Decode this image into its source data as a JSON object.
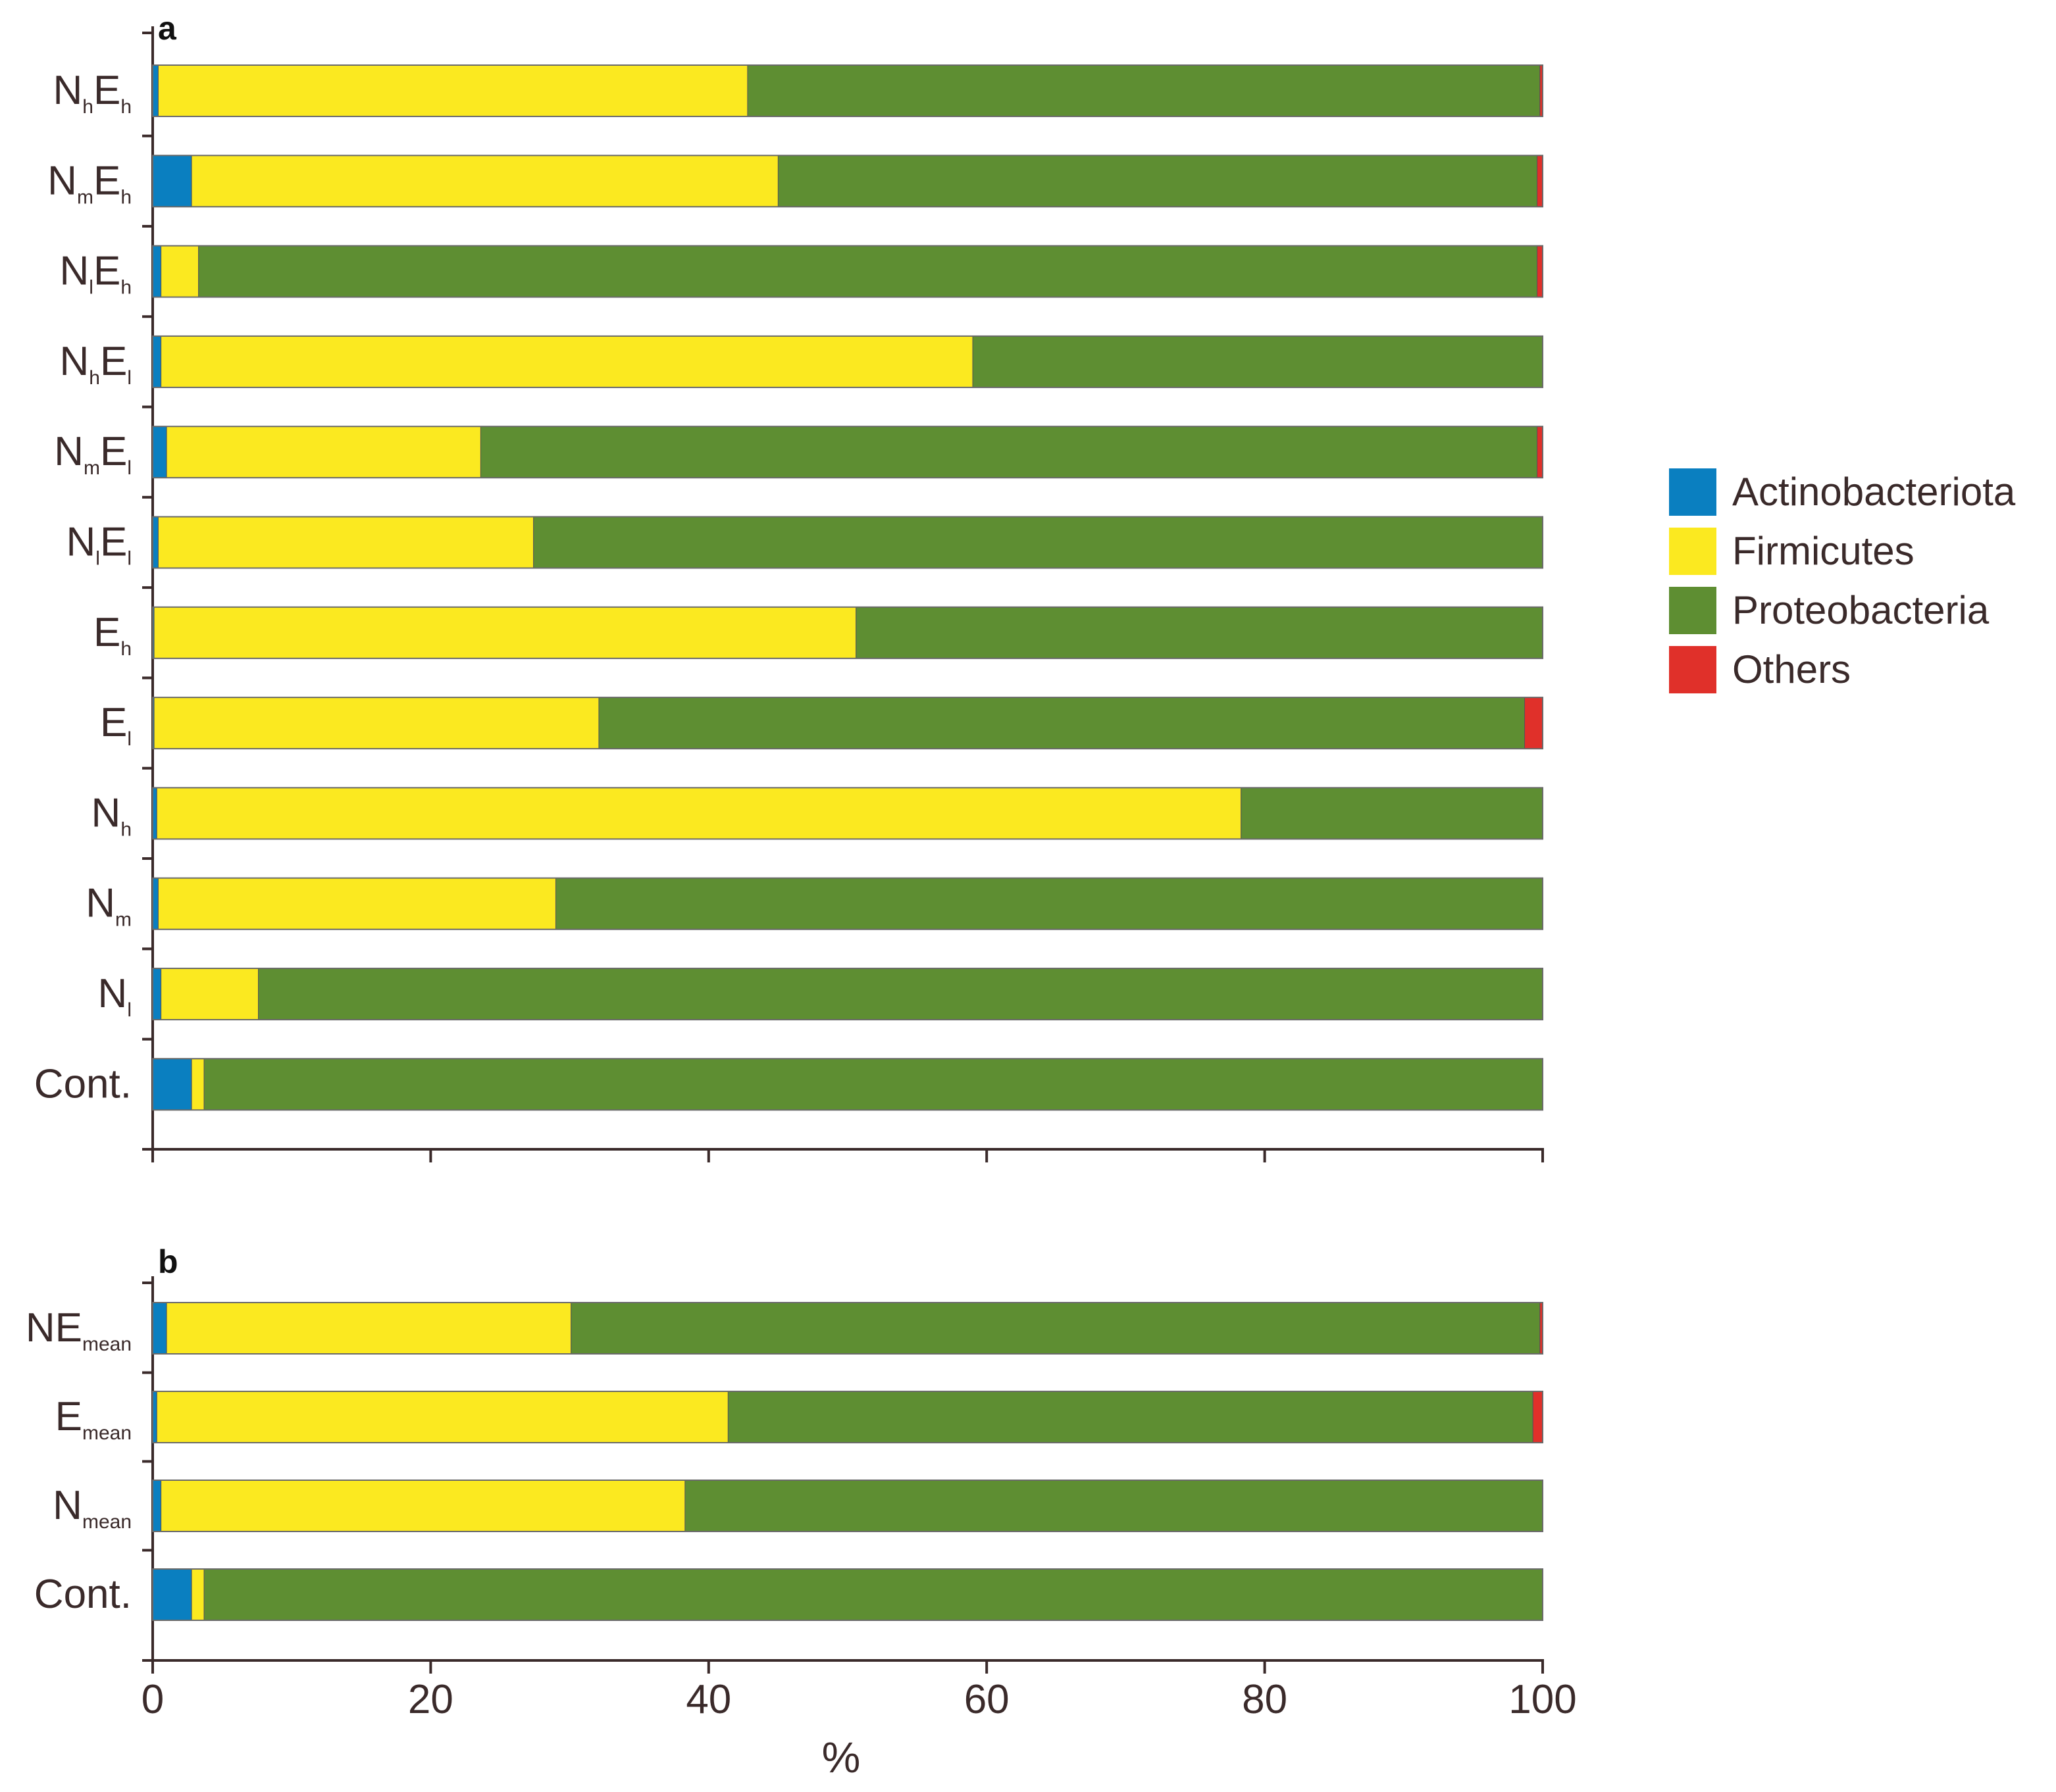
{
  "chart_data": [
    {
      "panel": "a",
      "type": "bar",
      "orientation": "horizontal",
      "stacked": true,
      "categories": [
        {
          "main": "N",
          "sub": "h",
          "main2": "E",
          "sub2": "h"
        },
        {
          "main": "N",
          "sub": "m",
          "main2": "E",
          "sub2": "h"
        },
        {
          "main": "N",
          "sub": "l",
          "main2": "E",
          "sub2": "h"
        },
        {
          "main": "N",
          "sub": "h",
          "main2": "E",
          "sub2": "l"
        },
        {
          "main": "N",
          "sub": "m",
          "main2": "E",
          "sub2": "l"
        },
        {
          "main": "N",
          "sub": "l",
          "main2": "E",
          "sub2": "l"
        },
        {
          "main": "E",
          "sub": "h"
        },
        {
          "main": "E",
          "sub": "l"
        },
        {
          "main": "N",
          "sub": "h"
        },
        {
          "main": "N",
          "sub": "m"
        },
        {
          "main": "N",
          "sub": "l"
        },
        {
          "main": "Cont."
        }
      ],
      "series": [
        {
          "name": "Actinobacteriota",
          "values": [
            0.4,
            2.8,
            0.6,
            0.6,
            1.0,
            0.4,
            0.1,
            0.1,
            0.3,
            0.4,
            0.6,
            2.8
          ]
        },
        {
          "name": "Firmicutes",
          "values": [
            42.4,
            42.2,
            2.7,
            58.4,
            22.6,
            27.0,
            50.5,
            32.0,
            78.0,
            28.6,
            7.0,
            0.9
          ]
        },
        {
          "name": "Proteobacteria",
          "values": [
            57.0,
            54.6,
            96.3,
            41.0,
            76.0,
            72.6,
            49.4,
            66.6,
            21.7,
            71.0,
            92.4,
            96.3
          ]
        },
        {
          "name": "Others",
          "values": [
            0.2,
            0.4,
            0.4,
            0.0,
            0.4,
            0.0,
            0.0,
            1.3,
            0.0,
            0.0,
            0.0,
            0.0
          ]
        }
      ],
      "xlim": [
        0,
        100
      ]
    },
    {
      "panel": "b",
      "type": "bar",
      "orientation": "horizontal",
      "stacked": true,
      "categories": [
        {
          "main": "NE",
          "sub": "mean"
        },
        {
          "main": "E",
          "sub": "mean"
        },
        {
          "main": "N",
          "sub": "mean"
        },
        {
          "main": "Cont."
        }
      ],
      "series": [
        {
          "name": "Actinobacteriota",
          "values": [
            1.0,
            0.3,
            0.6,
            2.8
          ]
        },
        {
          "name": "Firmicutes",
          "values": [
            29.1,
            41.1,
            37.7,
            0.9
          ]
        },
        {
          "name": "Proteobacteria",
          "values": [
            69.7,
            57.9,
            61.7,
            96.3
          ]
        },
        {
          "name": "Others",
          "values": [
            0.2,
            0.7,
            0.0,
            0.0
          ]
        }
      ],
      "xlim": [
        0,
        100
      ],
      "xticks": [
        "0",
        "20",
        "40",
        "60",
        "80",
        "100"
      ],
      "xlabel": "%"
    }
  ],
  "legend": [
    {
      "name": "Actinobacteriota",
      "color": "#0a7fc0"
    },
    {
      "name": "Firmicutes",
      "color": "#fbe920"
    },
    {
      "name": "Proteobacteria",
      "color": "#5e8e32"
    },
    {
      "name": "Others",
      "color": "#e0302a"
    }
  ]
}
